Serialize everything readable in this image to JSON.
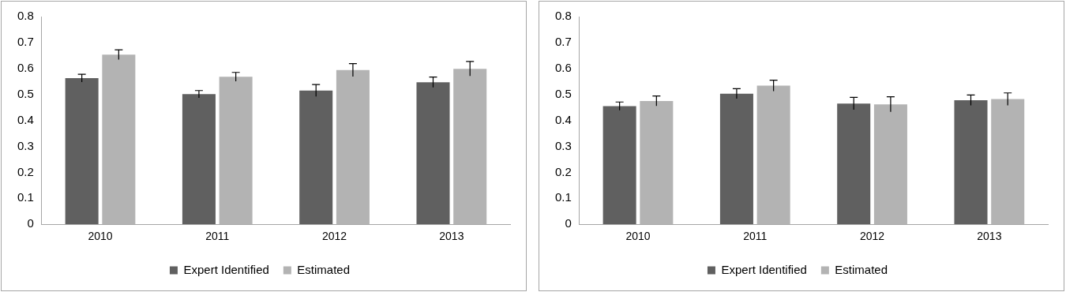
{
  "chart_data": [
    {
      "type": "bar",
      "categories": [
        "2010",
        "2011",
        "2012",
        "2013"
      ],
      "series": [
        {
          "name": "Expert Identified",
          "color": "#606060",
          "values": [
            0.563,
            0.501,
            0.515,
            0.547
          ],
          "errors": [
            0.015,
            0.014,
            0.023,
            0.02
          ]
        },
        {
          "name": "Estimated",
          "color": "#b3b3b3",
          "values": [
            0.653,
            0.568,
            0.594,
            0.599
          ],
          "errors": [
            0.019,
            0.017,
            0.025,
            0.028
          ]
        }
      ],
      "ylim": [
        0,
        0.8
      ],
      "yticks": [
        0,
        0.1,
        0.2,
        0.3,
        0.4,
        0.5,
        0.6,
        0.7,
        0.8
      ],
      "grid": false,
      "legend": "bottom"
    },
    {
      "type": "bar",
      "categories": [
        "2010",
        "2011",
        "2012",
        "2013"
      ],
      "series": [
        {
          "name": "Expert Identified",
          "color": "#606060",
          "values": [
            0.455,
            0.503,
            0.465,
            0.478
          ],
          "errors": [
            0.016,
            0.019,
            0.024,
            0.02
          ]
        },
        {
          "name": "Estimated",
          "color": "#b3b3b3",
          "values": [
            0.475,
            0.534,
            0.462,
            0.482
          ],
          "errors": [
            0.019,
            0.021,
            0.029,
            0.024
          ]
        }
      ],
      "ylim": [
        0,
        0.8
      ],
      "yticks": [
        0,
        0.1,
        0.2,
        0.3,
        0.4,
        0.5,
        0.6,
        0.7,
        0.8
      ],
      "grid": false,
      "legend": "bottom"
    }
  ]
}
